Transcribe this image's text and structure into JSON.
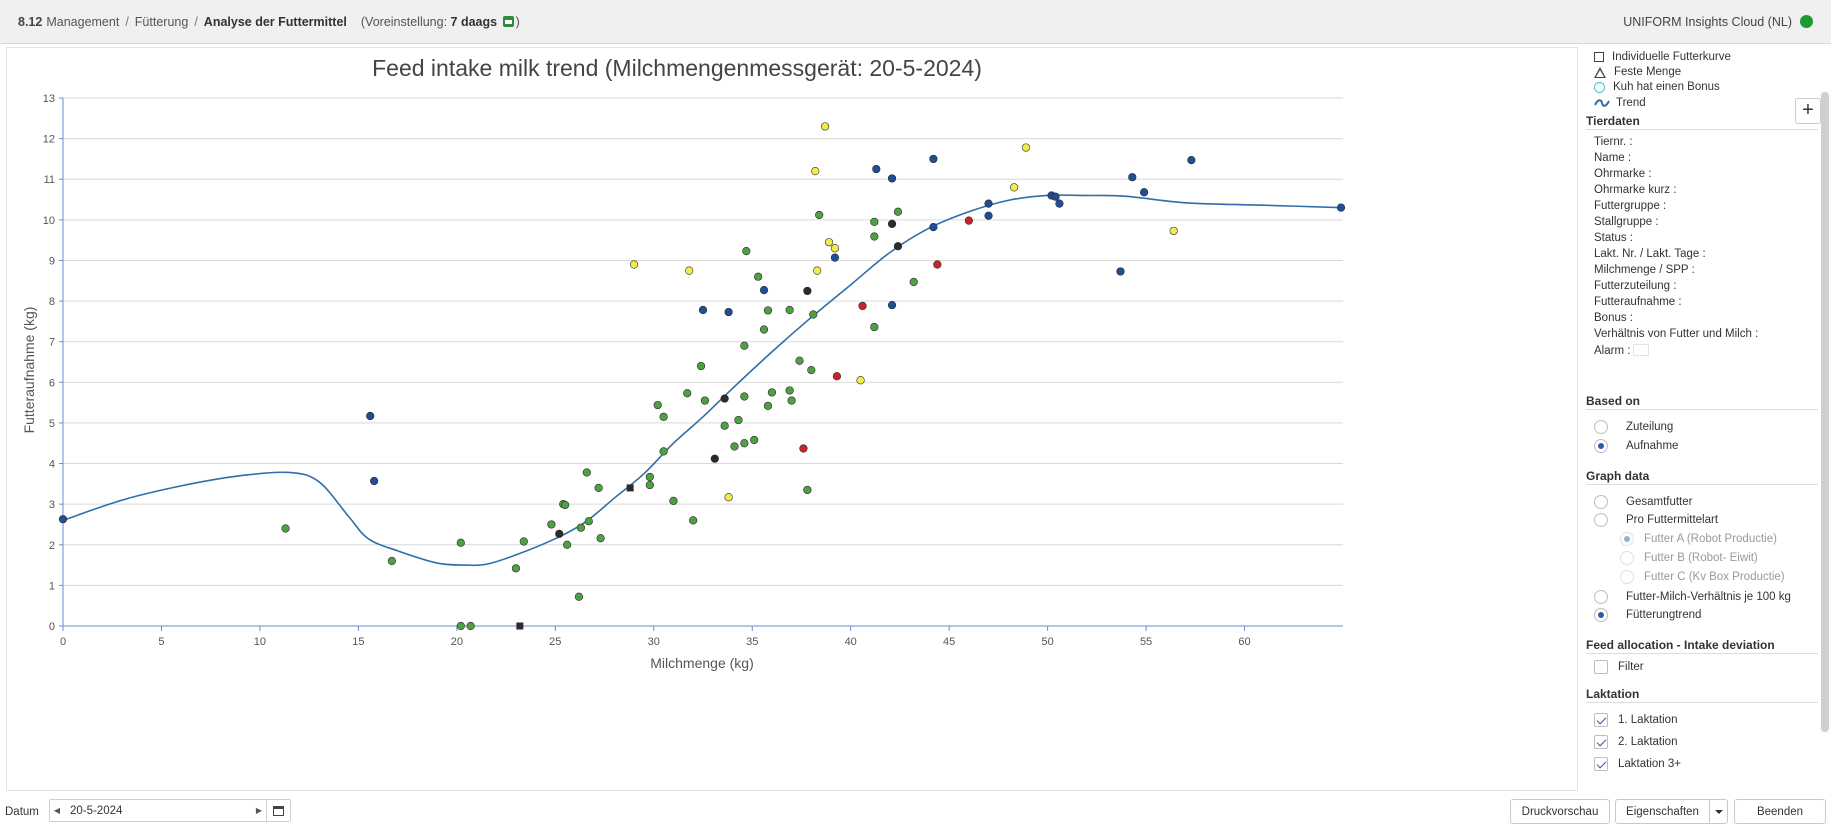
{
  "header": {
    "module_number": "8.12",
    "crumbs": [
      "Management",
      "Fütterung"
    ],
    "current": "Analyse der Futtermittel",
    "preset_label": "(Voreinstellung:",
    "preset_value": "7 daags",
    "preset_close": ")",
    "cloud_label": "UNIFORM Insights Cloud (NL)",
    "status_color": "#1e9a32"
  },
  "legend": {
    "items": [
      {
        "label": "Individuelle Futterkurve",
        "icon": "square-icon"
      },
      {
        "label": "Feste Menge",
        "icon": "triangle-icon"
      },
      {
        "label": "Kuh hat einen Bonus",
        "icon": "circle-icon"
      },
      {
        "label": "Trend",
        "icon": "trend-line-icon"
      }
    ],
    "add_label": "+"
  },
  "tierdaten": {
    "title": "Tierdaten",
    "fields": [
      "Tiernr. :",
      "Name :",
      "Ohrmarke :",
      "Ohrmarke kurz :",
      "Futtergruppe :",
      "Stallgruppe :",
      "Status :",
      "Lakt. Nr. / Lakt. Tage :",
      "Milchmenge / SPP :",
      "Futterzuteilung :",
      "Futteraufnahme :",
      "Bonus :",
      "Verhältnis von Futter und Milch :",
      "Alarm :"
    ]
  },
  "based_on": {
    "title": "Based on",
    "options": [
      {
        "label": "Zuteilung",
        "selected": false
      },
      {
        "label": "Aufnahme",
        "selected": true
      }
    ]
  },
  "graph_data": {
    "title": "Graph data",
    "options": [
      {
        "label": "Gesamtfutter",
        "selected": false,
        "sub": false,
        "disabled": false
      },
      {
        "label": "Pro Futtermittelart",
        "selected": false,
        "sub": false,
        "disabled": false
      },
      {
        "label": "Futter A (Robot Productie)",
        "selected": true,
        "sub": true,
        "disabled": true
      },
      {
        "label": "Futter B (Robot- Eiwit)",
        "selected": false,
        "sub": true,
        "disabled": true
      },
      {
        "label": "Futter C (Kv Box Productie)",
        "selected": false,
        "sub": true,
        "disabled": true
      },
      {
        "label": "Futter-Milch-Verhältnis je 100 kg",
        "selected": false,
        "sub": false,
        "disabled": false
      },
      {
        "label": "Fütterungtrend",
        "selected": true,
        "sub": false,
        "disabled": false
      }
    ]
  },
  "deviation": {
    "title": "Feed allocation - Intake deviation",
    "filter_label": "Filter",
    "filter_checked": false
  },
  "laktation": {
    "title": "Laktation",
    "items": [
      {
        "label": "1. Laktation",
        "checked": true
      },
      {
        "label": "2. Laktation",
        "checked": true
      },
      {
        "label": "Laktation 3+",
        "checked": true
      }
    ]
  },
  "footer": {
    "datum_label": "Datum",
    "date_value": "20-5-2024",
    "print_label": "Druckvorschau",
    "props_label": "Eigenschaften",
    "exit_label": "Beenden"
  },
  "chart_data": {
    "type": "scatter",
    "title": "Feed intake milk trend (Milchmengenmessgerät: 20-5-2024)",
    "xlabel": "Milchmenge (kg)",
    "ylabel": "Futteraufnahme (kg)",
    "xlim": [
      0,
      65
    ],
    "ylim": [
      0,
      13
    ],
    "xticks": [
      0,
      5,
      10,
      15,
      20,
      25,
      30,
      35,
      40,
      45,
      50,
      55,
      60
    ],
    "yticks": [
      0,
      1,
      2,
      3,
      4,
      5,
      6,
      7,
      8,
      9,
      10,
      11,
      12,
      13
    ],
    "grid": true,
    "colors": {
      "blue": "#1f4e96",
      "green": "#4fa044",
      "yellow": "#f2ec4a",
      "red": "#cc2229",
      "black": "#2b2b2b",
      "trend": "#2f6ea8"
    },
    "series": [
      {
        "color": "green",
        "marker": "circle",
        "points": [
          [
            11.3,
            2.4
          ],
          [
            16.7,
            1.6
          ],
          [
            20.2,
            2.05
          ],
          [
            20.2,
            0
          ],
          [
            20.7,
            0
          ],
          [
            23,
            1.42
          ],
          [
            23.4,
            2.08
          ],
          [
            24.8,
            2.5
          ],
          [
            25.4,
            3.0
          ],
          [
            25.5,
            2.98
          ],
          [
            25.6,
            2.0
          ],
          [
            26.2,
            0.72
          ],
          [
            26.3,
            2.42
          ],
          [
            26.6,
            3.78
          ],
          [
            26.7,
            2.58
          ],
          [
            27.2,
            3.4
          ],
          [
            27.3,
            2.16
          ],
          [
            29.8,
            3.47
          ],
          [
            29.8,
            3.67
          ],
          [
            30.2,
            5.44
          ],
          [
            30.5,
            5.15
          ],
          [
            30.5,
            4.3
          ],
          [
            31,
            3.08
          ],
          [
            31.7,
            5.73
          ],
          [
            32,
            2.6
          ],
          [
            32.4,
            6.4
          ],
          [
            32.6,
            5.55
          ],
          [
            33.6,
            4.93
          ],
          [
            34.1,
            4.42
          ],
          [
            34.3,
            5.07
          ],
          [
            34.6,
            4.5
          ],
          [
            34.6,
            5.65
          ],
          [
            34.6,
            6.9
          ],
          [
            34.7,
            9.23
          ],
          [
            35.1,
            4.58
          ],
          [
            35.3,
            8.6
          ],
          [
            35.6,
            7.3
          ],
          [
            35.8,
            5.42
          ],
          [
            35.8,
            7.77
          ],
          [
            36,
            5.75
          ],
          [
            36.9,
            5.8
          ],
          [
            36.9,
            7.78
          ],
          [
            37,
            5.55
          ],
          [
            37.4,
            6.53
          ],
          [
            37.8,
            3.35
          ],
          [
            38,
            6.3
          ],
          [
            38.1,
            7.67
          ],
          [
            38.4,
            10.12
          ],
          [
            41.2,
            9.95
          ],
          [
            41.2,
            9.59
          ],
          [
            41.2,
            7.36
          ],
          [
            42.4,
            10.2
          ],
          [
            43.2,
            8.47
          ]
        ]
      },
      {
        "color": "blue",
        "marker": "circle",
        "points": [
          [
            0,
            2.63
          ],
          [
            15.6,
            5.17
          ],
          [
            15.8,
            3.57
          ],
          [
            32.5,
            7.78
          ],
          [
            33.8,
            7.73
          ],
          [
            35.6,
            8.27
          ],
          [
            39.2,
            9.07
          ],
          [
            41.3,
            11.25
          ],
          [
            42.1,
            11.02
          ],
          [
            42.1,
            7.9
          ],
          [
            44.2,
            11.5
          ],
          [
            44.2,
            9.82
          ],
          [
            47,
            10.1
          ],
          [
            47,
            10.4
          ],
          [
            50.2,
            10.6
          ],
          [
            50.4,
            10.57
          ],
          [
            50.6,
            10.4
          ],
          [
            53.7,
            8.73
          ],
          [
            54.3,
            11.05
          ],
          [
            54.9,
            10.68
          ],
          [
            57.3,
            11.47
          ],
          [
            64.9,
            10.3
          ]
        ]
      },
      {
        "color": "yellow",
        "marker": "circle",
        "points": [
          [
            29,
            8.9
          ],
          [
            31.8,
            8.75
          ],
          [
            33.8,
            3.17
          ],
          [
            38.2,
            11.2
          ],
          [
            38.3,
            8.75
          ],
          [
            38.7,
            12.3
          ],
          [
            38.9,
            9.45
          ],
          [
            39.2,
            9.3
          ],
          [
            40.5,
            6.05
          ],
          [
            48.3,
            10.8
          ],
          [
            48.9,
            11.78
          ],
          [
            56.4,
            9.73
          ]
        ]
      },
      {
        "color": "red",
        "marker": "circle",
        "points": [
          [
            37.6,
            4.37
          ],
          [
            39.3,
            6.15
          ],
          [
            40.6,
            7.88
          ],
          [
            44.4,
            8.9
          ],
          [
            46,
            9.98
          ]
        ]
      },
      {
        "color": "black",
        "marker": "circle",
        "points": [
          [
            25.2,
            2.27
          ],
          [
            33.1,
            4.12
          ],
          [
            33.6,
            5.6
          ],
          [
            37.8,
            8.25
          ],
          [
            42.1,
            9.9
          ],
          [
            42.4,
            9.35
          ]
        ]
      },
      {
        "color": "black",
        "marker": "square",
        "points": [
          [
            23.2,
            0
          ],
          [
            28.8,
            3.4
          ]
        ]
      }
    ],
    "trend": [
      [
        0,
        2.6
      ],
      [
        3,
        3.1
      ],
      [
        6,
        3.45
      ],
      [
        9,
        3.7
      ],
      [
        11.5,
        3.78
      ],
      [
        13,
        3.55
      ],
      [
        14.5,
        2.7
      ],
      [
        15.5,
        2.15
      ],
      [
        17,
        1.85
      ],
      [
        19,
        1.55
      ],
      [
        20.5,
        1.5
      ],
      [
        21.5,
        1.52
      ],
      [
        23,
        1.75
      ],
      [
        25,
        2.15
      ],
      [
        26.5,
        2.55
      ],
      [
        28,
        3.15
      ],
      [
        29.5,
        3.75
      ],
      [
        31,
        4.5
      ],
      [
        32.5,
        5.15
      ],
      [
        34,
        5.85
      ],
      [
        36,
        6.75
      ],
      [
        38,
        7.6
      ],
      [
        40,
        8.4
      ],
      [
        42,
        9.2
      ],
      [
        44,
        9.8
      ],
      [
        46,
        10.2
      ],
      [
        48,
        10.48
      ],
      [
        50,
        10.6
      ],
      [
        52,
        10.6
      ],
      [
        54,
        10.58
      ],
      [
        57,
        10.42
      ],
      [
        61,
        10.36
      ],
      [
        65,
        10.3
      ]
    ]
  }
}
